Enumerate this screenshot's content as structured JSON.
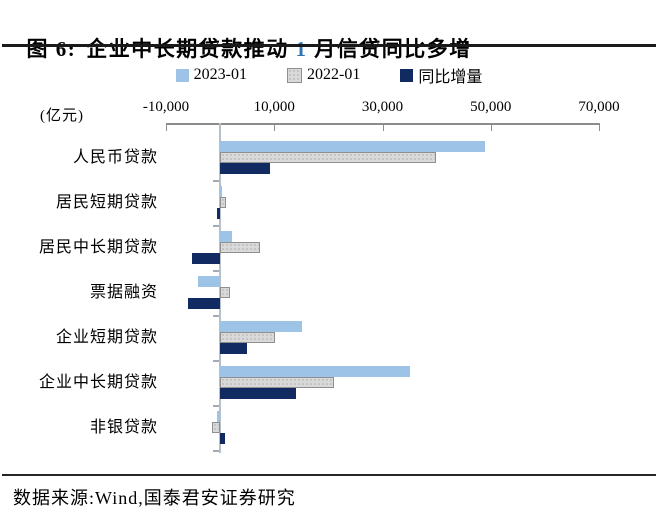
{
  "header": {
    "fig_label": "图 6:",
    "title_pre": "企业中长期贷款推动 ",
    "title_num": "1",
    "title_post": " 月信贷同比多增"
  },
  "footer": {
    "source": "数据来源:Wind,国泰君安证券研究"
  },
  "colors": {
    "title_number": "#2E75B6",
    "bar_2023": "#9DC3E6",
    "bar_2022": "#D9D9D9",
    "bar_diff": "#122A62",
    "axis_gray": "#8C8C8C",
    "zero_line": "#B7BFC9"
  },
  "chart_data": {
    "type": "bar",
    "orientation": "horizontal",
    "title": "企业中长期贷款推动 1 月信贷同比多增",
    "unit_label": "(亿元)",
    "xlim": [
      -10000,
      70000
    ],
    "x_ticks": [
      -10000,
      10000,
      30000,
      50000,
      70000
    ],
    "x_tick_labels": [
      "-10,000",
      "10,000",
      "30,000",
      "50,000",
      "70,000"
    ],
    "grid": false,
    "legend_position": "top",
    "categories": [
      "人民币贷款",
      "居民短期贷款",
      "居民中长期贷款",
      "票据融资",
      "企业短期贷款",
      "企业中长期贷款",
      "非银贷款"
    ],
    "series": [
      {
        "name": "2023-01",
        "color": "#9DC3E6",
        "values": [
          49000,
          341,
          2231,
          -4127,
          15100,
          35000,
          -585
        ]
      },
      {
        "name": "2022-01",
        "color": "#D9D9D9",
        "values": [
          39800,
          1006,
          7424,
          1788,
          10100,
          21000,
          -1417
        ]
      },
      {
        "name": "同比增量",
        "color": "#122A62",
        "values": [
          9200,
          -665,
          -5193,
          -5915,
          5000,
          14000,
          832
        ]
      }
    ]
  }
}
